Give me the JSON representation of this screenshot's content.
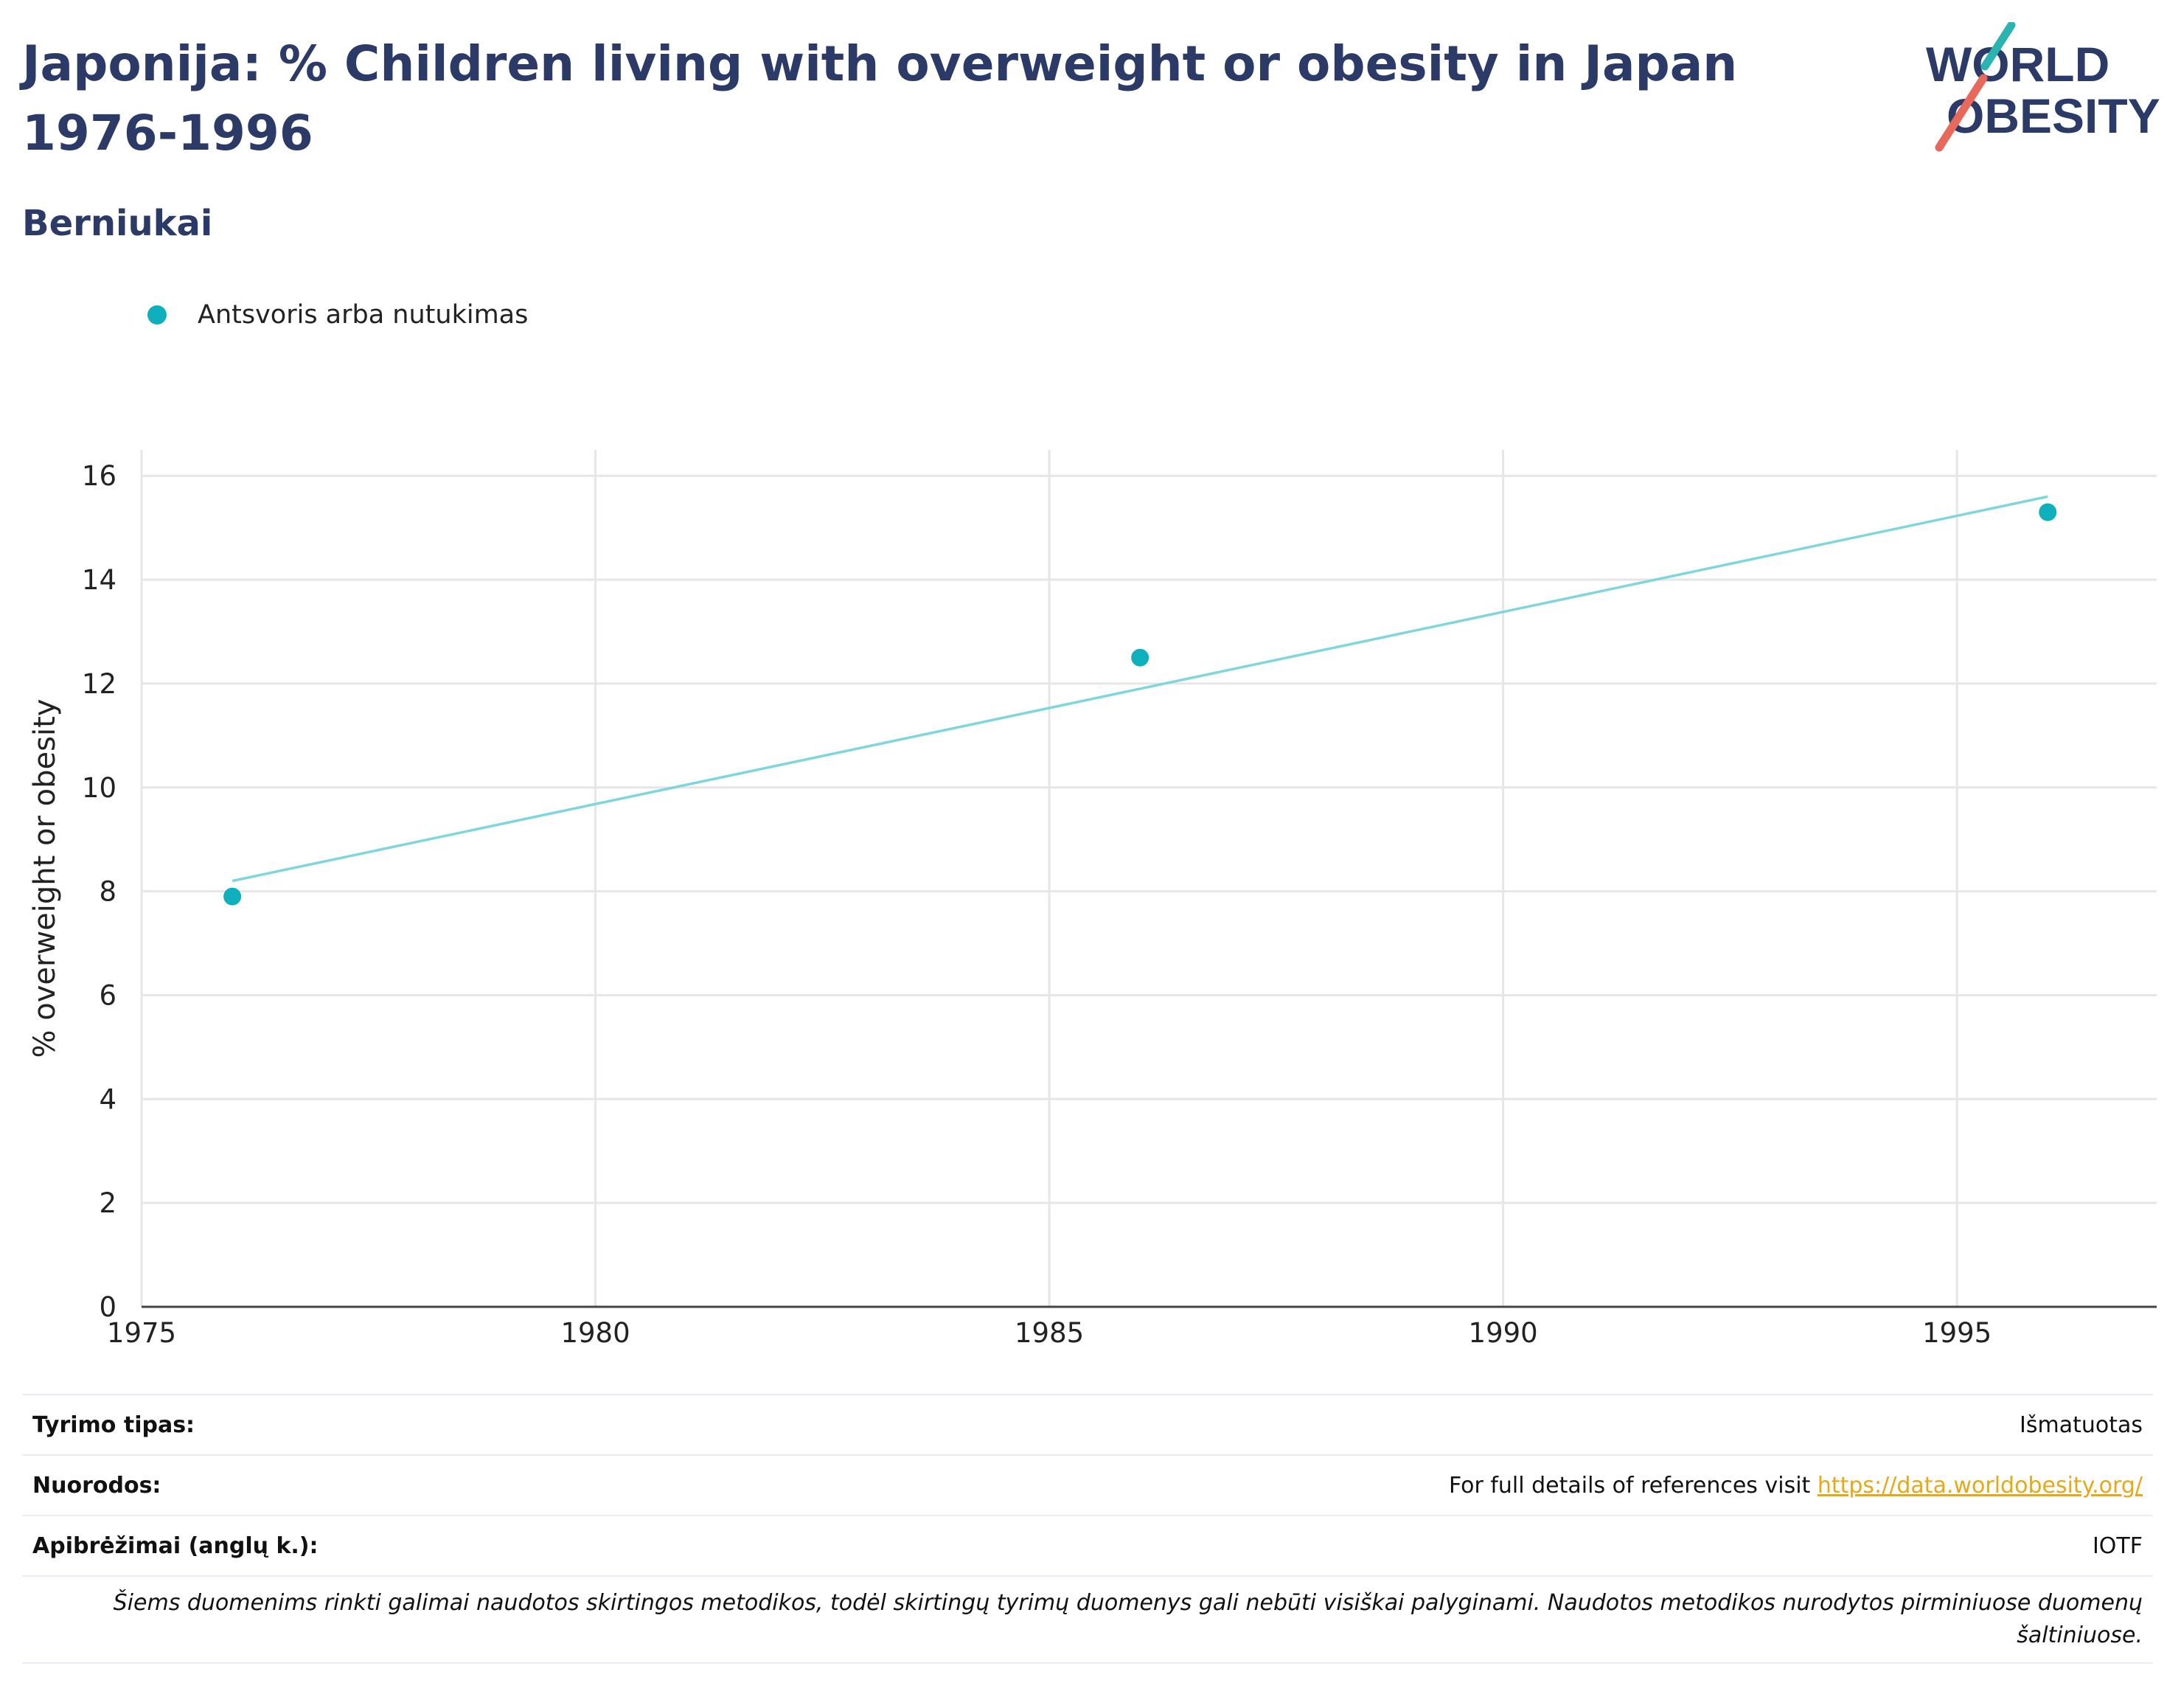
{
  "header": {
    "title": "Japonija: % Children living with overweight or obesity in Japan 1976-1996",
    "subtitle": "Berniukai"
  },
  "logo": {
    "line1": "WORLD",
    "line2": "OBESITY",
    "text_color": "#2b3a67",
    "accent_teal": "#2bb3b1",
    "accent_coral": "#e8685a"
  },
  "legend": {
    "label": "Antsvoris arba nutukimas",
    "color": "#0fb0bd"
  },
  "chart_data": {
    "type": "scatter",
    "series": [
      {
        "name": "Antsvoris arba nutukimas",
        "color": "#0fb0bd",
        "points": [
          {
            "x": 1976,
            "y": 7.9
          },
          {
            "x": 1986,
            "y": 12.5
          },
          {
            "x": 1996,
            "y": 15.3
          }
        ]
      }
    ],
    "trendline": {
      "color": "#7fd6dd",
      "points": [
        {
          "x": 1976,
          "y": 8.2
        },
        {
          "x": 1996,
          "y": 15.6
        }
      ]
    },
    "xlabel": "",
    "ylabel": "% overweight or obesity",
    "xlim": [
      1975,
      1997.2
    ],
    "ylim": [
      0,
      16.5
    ],
    "xticks": [
      1975,
      1980,
      1985,
      1990,
      1995
    ],
    "yticks": [
      0,
      2,
      4,
      6,
      8,
      10,
      12,
      14,
      16
    ],
    "grid": true
  },
  "meta": {
    "rows": [
      {
        "key": "Tyrimo tipas:",
        "value": "Išmatuotas"
      },
      {
        "key": "Nuorodos:",
        "value": "For full details of references visit ",
        "link": "https://data.worldobesity.org/"
      },
      {
        "key": "Apibrėžimai (anglų k.):",
        "value": "IOTF"
      }
    ],
    "note": "Šiems duomenims rinkti galimai naudotos skirtingos metodikos, todėl skirtingų tyrimų duomenys gali nebūti visiškai palyginami. Naudotos metodikos nurodytos pirminiuose duomenų šaltiniuose."
  }
}
